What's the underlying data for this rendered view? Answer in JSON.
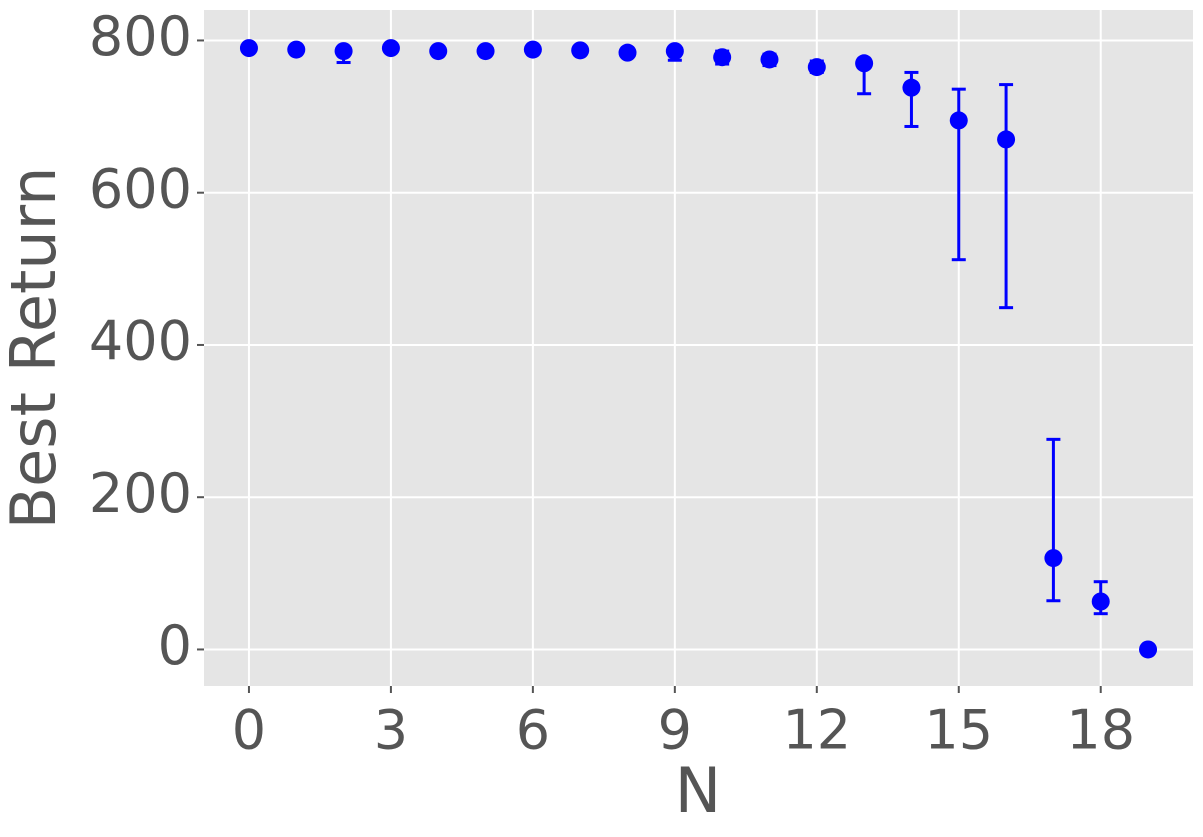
{
  "chart_data": {
    "type": "scatter",
    "x_label": "N",
    "y_label": "Best Return",
    "x": [
      0,
      1,
      2,
      3,
      4,
      5,
      6,
      7,
      8,
      9,
      10,
      11,
      12,
      13,
      14,
      15,
      16,
      17,
      18,
      19
    ],
    "series": [
      {
        "name": "Best Return",
        "color": "#0000ff",
        "values": [
          790,
          788,
          786,
          790,
          786,
          786,
          788,
          787,
          784,
          786,
          778,
          775,
          765,
          770,
          738,
          695,
          670,
          120,
          63,
          0
        ],
        "lower": [
          788,
          786,
          771,
          788,
          784,
          784,
          786,
          785,
          782,
          774,
          769,
          767,
          758,
          730,
          687,
          512,
          449,
          64,
          47,
          0
        ],
        "upper": [
          792,
          790,
          790,
          792,
          788,
          788,
          790,
          789,
          786,
          790,
          786,
          782,
          773,
          775,
          758,
          736,
          742,
          276,
          89,
          0
        ]
      }
    ],
    "xlim": [
      -0.95,
      19.95
    ],
    "ylim": [
      -48,
      840
    ],
    "xticks": [
      0,
      3,
      6,
      9,
      12,
      15,
      18
    ],
    "yticks": [
      0,
      200,
      400,
      600,
      800
    ],
    "grid": true
  }
}
